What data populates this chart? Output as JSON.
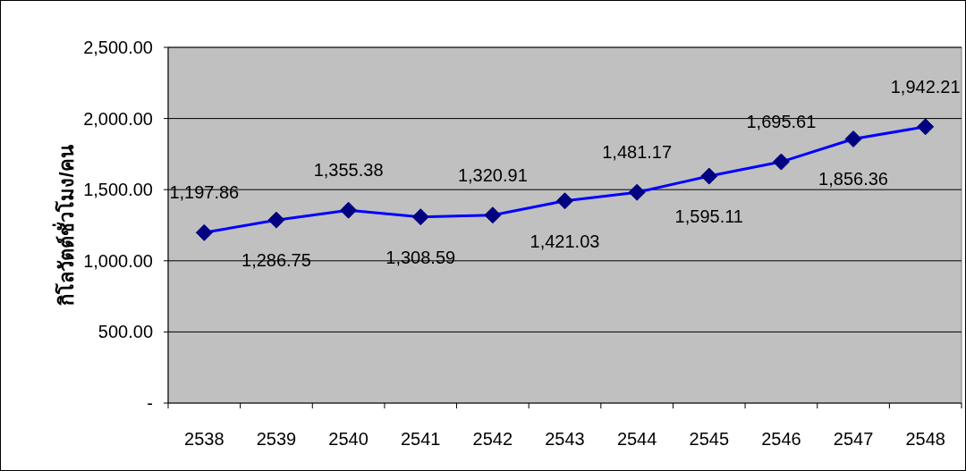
{
  "chart_data": {
    "type": "line",
    "ylabel": "กิโลวัตต์ชั่วโมง/คน",
    "categories": [
      "2538",
      "2539",
      "2540",
      "2541",
      "2542",
      "2543",
      "2544",
      "2545",
      "2546",
      "2547",
      "2548"
    ],
    "values": [
      1197.86,
      1286.75,
      1355.38,
      1308.59,
      1320.91,
      1421.03,
      1481.17,
      1595.11,
      1695.61,
      1856.36,
      1942.21
    ],
    "value_labels": [
      "1,197.86",
      "1,286.75",
      "1,355.38",
      "1,308.59",
      "1,320.91",
      "1,421.03",
      "1,481.17",
      "1,595.11",
      "1,695.61",
      "1,856.36",
      "1,942.21"
    ],
    "color": "#0000ff",
    "marker": "diamond",
    "grid": "y",
    "ylim": [
      0,
      2500
    ],
    "yticks": [
      {
        "value": 0,
        "label": "-"
      },
      {
        "value": 500,
        "label": "500.00"
      },
      {
        "value": 1000,
        "label": "1,000.00"
      },
      {
        "value": 1500,
        "label": "1,500.00"
      },
      {
        "value": 2000,
        "label": "2,000.00"
      },
      {
        "value": 2500,
        "label": "2,500.00"
      }
    ]
  }
}
